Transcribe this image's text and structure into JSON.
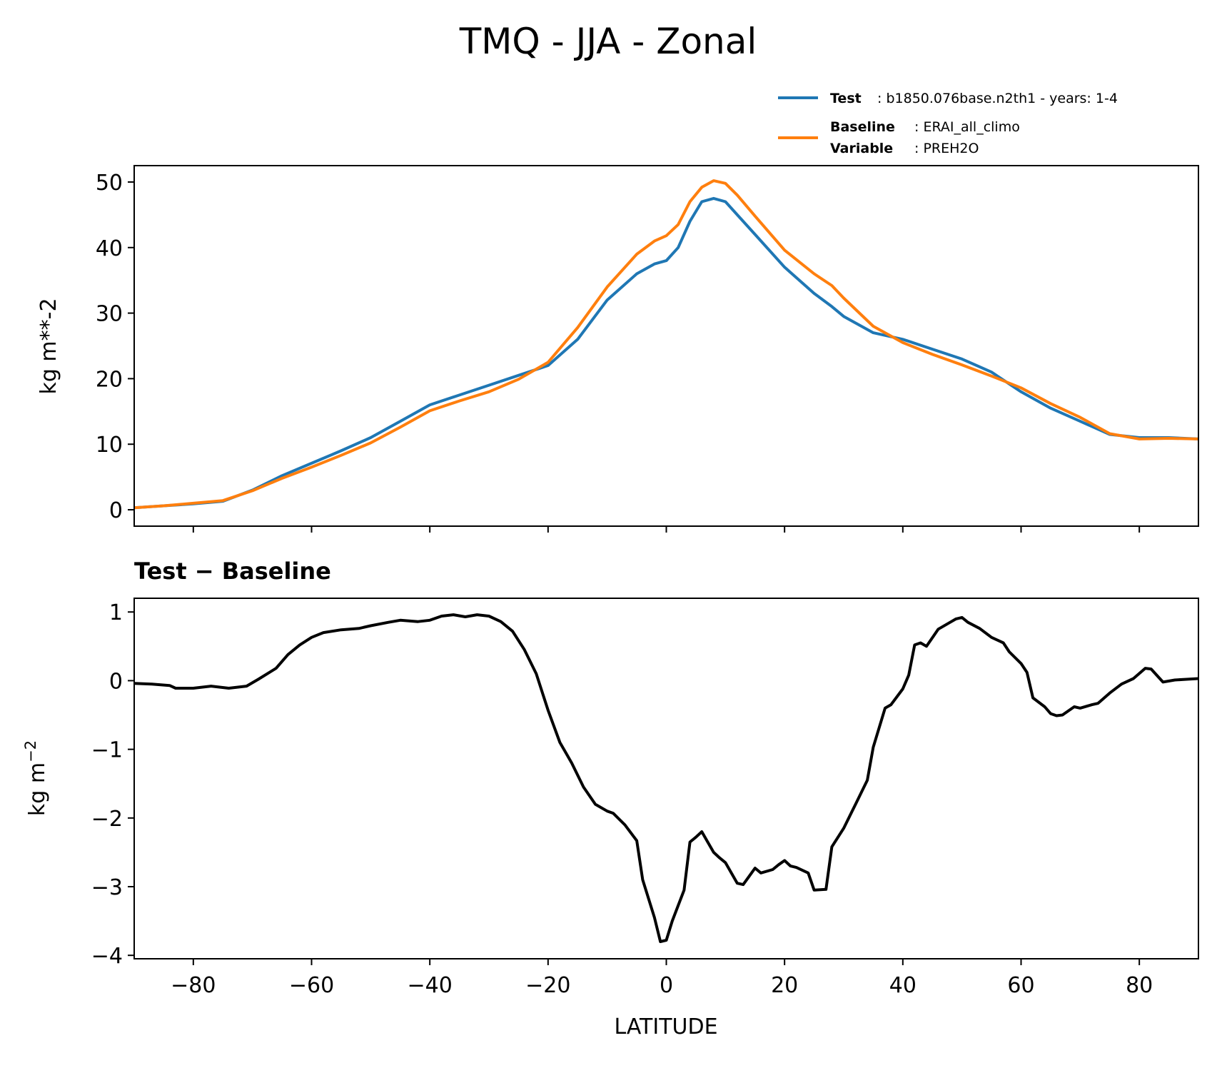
{
  "figure": {
    "title": "TMQ - JJA - Zonal"
  },
  "legend": {
    "test_key": "Test",
    "test_value": "b1850.076base.n2th1 - years: 1-4",
    "baseline_key": "Baseline",
    "baseline_value": "ERAI_all_climo",
    "variable_key": "Variable",
    "variable_value": "PREH2O",
    "placement": "upper-right, above top panel"
  },
  "chart_data": [
    {
      "type": "line",
      "title": "",
      "xlabel": "",
      "ylabel": "kg m**-2",
      "xlim": [
        -90,
        90
      ],
      "ylim": [
        -2.5,
        52.5
      ],
      "yticks": [
        "0",
        "10",
        "20",
        "30",
        "40",
        "50"
      ],
      "yticks_values": [
        0,
        10,
        20,
        30,
        40,
        50
      ],
      "xticks_values": [
        -80,
        -60,
        -40,
        -20,
        0,
        20,
        40,
        60,
        80
      ],
      "grid": false,
      "colors": {
        "test": "#1f77b4",
        "baseline": "#ff7f0e"
      },
      "x": [
        -90,
        -85,
        -80,
        -75,
        -70,
        -65,
        -60,
        -55,
        -50,
        -45,
        -40,
        -35,
        -30,
        -25,
        -20,
        -15,
        -10,
        -5,
        -2,
        0,
        2,
        4,
        6,
        8,
        10,
        12,
        15,
        20,
        25,
        28,
        30,
        35,
        40,
        45,
        50,
        55,
        60,
        65,
        70,
        75,
        80,
        85,
        90
      ],
      "series": [
        {
          "name": "Test",
          "values": [
            0.3,
            0.6,
            0.9,
            1.3,
            3.0,
            5.2,
            7.1,
            9.0,
            11.0,
            13.5,
            16.0,
            17.5,
            19.0,
            20.5,
            22.0,
            26.0,
            32.0,
            36.0,
            37.5,
            38.0,
            40.0,
            44.0,
            47.0,
            47.5,
            47.0,
            45.0,
            42.0,
            37.0,
            33.0,
            31.0,
            29.5,
            27.0,
            26.0,
            24.5,
            23.0,
            21.0,
            18.0,
            15.5,
            13.5,
            11.5,
            11.0,
            11.0,
            10.8
          ]
        },
        {
          "name": "Baseline",
          "values": [
            0.3,
            0.6,
            1.0,
            1.4,
            2.9,
            4.8,
            6.5,
            8.3,
            10.2,
            12.6,
            15.1,
            16.6,
            18.0,
            19.9,
            22.5,
            27.8,
            34.0,
            39.0,
            41.0,
            41.8,
            43.5,
            47.0,
            49.2,
            50.2,
            49.8,
            48.0,
            44.8,
            39.6,
            36.0,
            34.2,
            32.3,
            28.0,
            25.5,
            23.7,
            22.1,
            20.4,
            18.6,
            16.2,
            14.1,
            11.6,
            10.8,
            10.9,
            10.8
          ]
        }
      ]
    },
    {
      "type": "line",
      "title": "Test − Baseline",
      "xlabel": "LATITUDE",
      "ylabel": "kg m",
      "ylabel_exponent": "−2",
      "xlim": [
        -90,
        90
      ],
      "ylim": [
        -4.05,
        1.2
      ],
      "yticks": [
        "1",
        "0",
        "−1",
        "−2",
        "−3",
        "−4"
      ],
      "yticks_values": [
        1,
        0,
        -1,
        -2,
        -3,
        -4
      ],
      "xticks": [
        "−80",
        "−60",
        "−40",
        "−20",
        "0",
        "20",
        "40",
        "60",
        "80"
      ],
      "xticks_values": [
        -80,
        -60,
        -40,
        -20,
        0,
        20,
        40,
        60,
        80
      ],
      "grid": false,
      "colors": {
        "diff": "#000000"
      },
      "x": [
        -90,
        -87,
        -84,
        -83,
        -80,
        -77,
        -74,
        -71,
        -69,
        -66,
        -64,
        -62,
        -60,
        -58,
        -55,
        -52,
        -50,
        -47,
        -45,
        -42,
        -40,
        -38,
        -36,
        -34,
        -32,
        -30,
        -28,
        -26,
        -24,
        -22,
        -20,
        -18,
        -17,
        -16,
        -14,
        -12,
        -10,
        -9,
        -7,
        -5,
        -4,
        -2,
        -1,
        0,
        1,
        3,
        4,
        5,
        6,
        7,
        8,
        9,
        10,
        12,
        13,
        14,
        15,
        16,
        18,
        19,
        20,
        21,
        22,
        24,
        25,
        27,
        28,
        30,
        32,
        34,
        35,
        37,
        38,
        40,
        41,
        42,
        43,
        44,
        46,
        48,
        49,
        50,
        51,
        53,
        55,
        57,
        58,
        60,
        61,
        62,
        64,
        65,
        66,
        67,
        69,
        70,
        72,
        73,
        75,
        77,
        79,
        81,
        82,
        84,
        86,
        88,
        90
      ],
      "series": [
        {
          "name": "Test − Baseline",
          "values": [
            -0.04,
            -0.05,
            -0.07,
            -0.11,
            -0.11,
            -0.08,
            -0.11,
            -0.08,
            0.02,
            0.18,
            0.38,
            0.52,
            0.63,
            0.7,
            0.74,
            0.76,
            0.8,
            0.85,
            0.88,
            0.86,
            0.88,
            0.94,
            0.96,
            0.93,
            0.96,
            0.94,
            0.86,
            0.72,
            0.45,
            0.1,
            -0.43,
            -0.9,
            -1.05,
            -1.2,
            -1.55,
            -1.8,
            -1.9,
            -1.93,
            -2.1,
            -2.33,
            -2.9,
            -3.45,
            -3.8,
            -3.78,
            -3.5,
            -3.05,
            -2.35,
            -2.28,
            -2.2,
            -2.35,
            -2.5,
            -2.58,
            -2.65,
            -2.95,
            -2.97,
            -2.85,
            -2.73,
            -2.8,
            -2.75,
            -2.68,
            -2.62,
            -2.7,
            -2.72,
            -2.8,
            -3.05,
            -3.04,
            -2.42,
            -2.15,
            -1.8,
            -1.45,
            -0.97,
            -0.4,
            -0.35,
            -0.12,
            0.08,
            0.52,
            0.55,
            0.5,
            0.75,
            0.85,
            0.9,
            0.92,
            0.85,
            0.76,
            0.63,
            0.55,
            0.42,
            0.25,
            0.12,
            -0.25,
            -0.38,
            -0.48,
            -0.51,
            -0.5,
            -0.38,
            -0.4,
            -0.35,
            -0.33,
            -0.18,
            -0.05,
            0.03,
            0.18,
            0.17,
            -0.02,
            0.01,
            0.02,
            0.03
          ]
        }
      ]
    }
  ]
}
